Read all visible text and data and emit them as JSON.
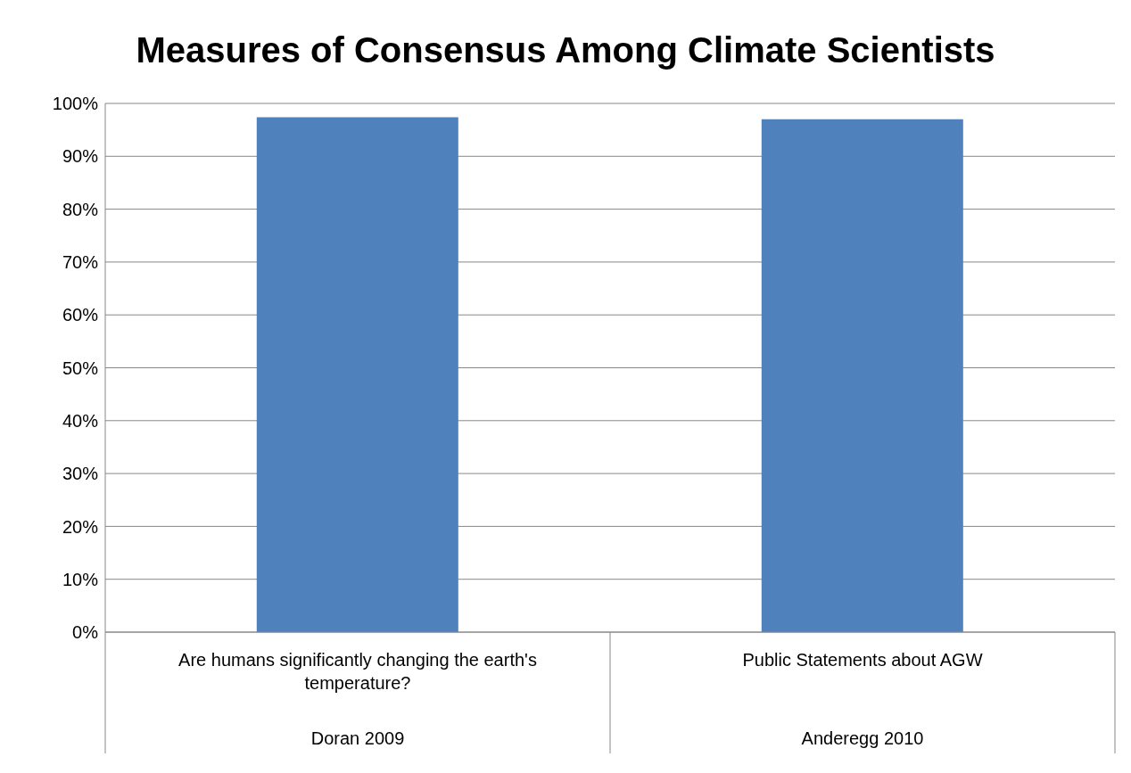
{
  "chart_data": {
    "type": "bar",
    "title": "Measures of Consensus Among Climate Scientists",
    "categories": [
      "Are humans significantly changing the earth's temperature?",
      "Public Statements about AGW"
    ],
    "values": [
      97.4,
      97
    ],
    "color": "#4f81bd",
    "ylim": [
      0,
      100
    ],
    "yticks": [
      {
        "value": 0,
        "label": "0%"
      },
      {
        "value": 10,
        "label": "10%"
      },
      {
        "value": 20,
        "label": "20%"
      },
      {
        "value": 30,
        "label": "30%"
      },
      {
        "value": 40,
        "label": "40%"
      },
      {
        "value": 50,
        "label": "50%"
      },
      {
        "value": 60,
        "label": "60%"
      },
      {
        "value": 70,
        "label": "70%"
      },
      {
        "value": 80,
        "label": "80%"
      },
      {
        "value": 90,
        "label": "90%"
      },
      {
        "value": 100,
        "label": "100%"
      }
    ],
    "grid": "y",
    "annotations": [
      "Doran 2009",
      "Anderegg 2010"
    ]
  }
}
